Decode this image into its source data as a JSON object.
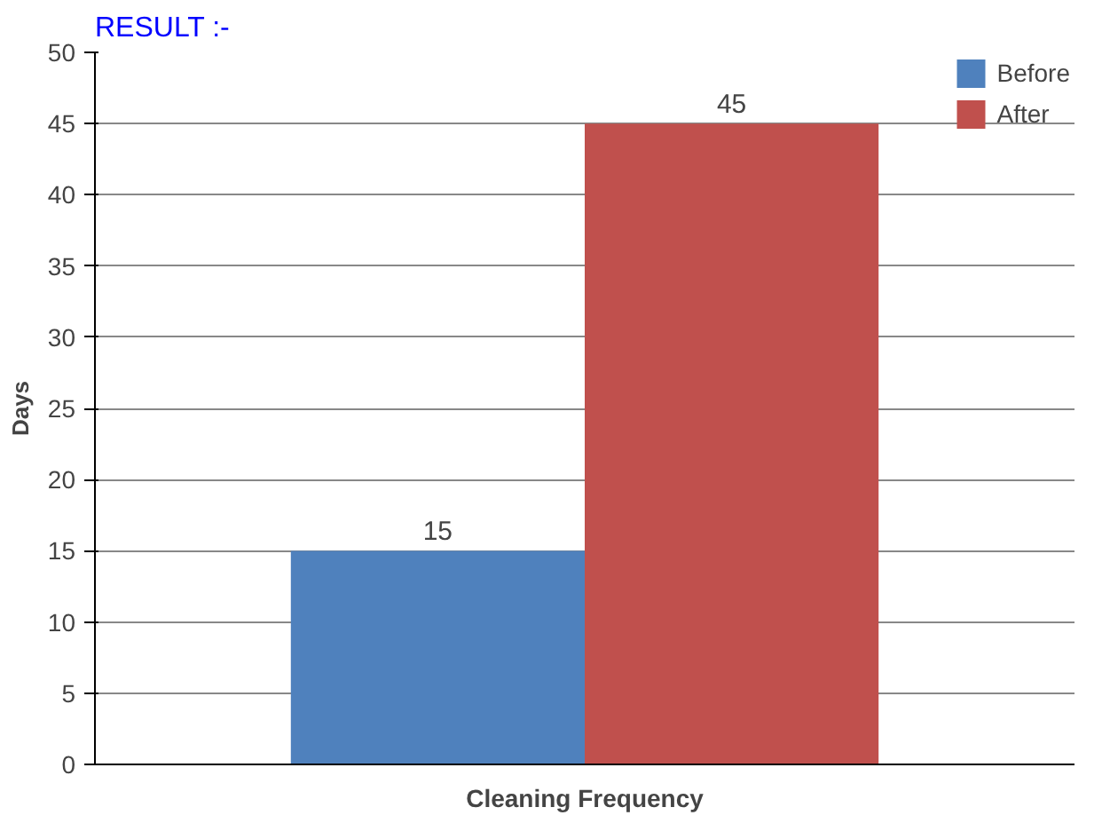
{
  "chart_data": {
    "type": "bar",
    "title": "RESULT :-",
    "ylabel": "Days",
    "categories": [
      "Cleaning Frequency"
    ],
    "series": [
      {
        "name": "Before",
        "color": "#4f81bd",
        "values": [
          15
        ]
      },
      {
        "name": "After",
        "color": "#c0504d",
        "values": [
          45
        ]
      }
    ],
    "ylim": [
      0,
      50
    ],
    "yticks": [
      0,
      5,
      10,
      15,
      20,
      25,
      30,
      35,
      40,
      45,
      50
    ],
    "grid": "y",
    "legend": "top right",
    "data_labels": true
  }
}
